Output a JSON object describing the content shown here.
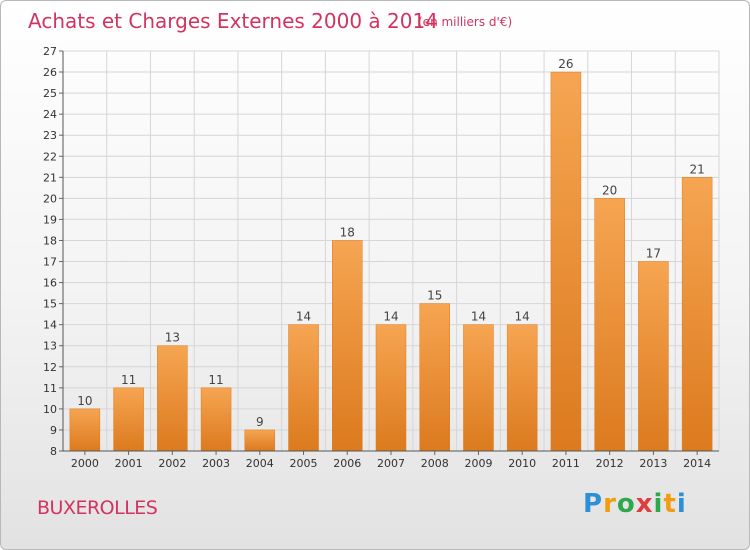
{
  "header": {
    "title": "Achats et Charges Externes 2000 à 2014",
    "unit": "(en milliers d'€)"
  },
  "footer": {
    "place": "BUXEROLLES",
    "logo_letters": [
      "P",
      "r",
      "o",
      "x",
      "i",
      "t",
      "i"
    ]
  },
  "colors": {
    "title": "#d2335f",
    "bar_light": "#f6a552",
    "bar_dark": "#dc7a1e",
    "logo": [
      "#2f8fd6",
      "#f39c12",
      "#2ea84a",
      "#e23b3b",
      "#2ea84a",
      "#f39c12",
      "#2f8fd6"
    ]
  },
  "chart_data": {
    "type": "bar",
    "categories": [
      "2000",
      "2001",
      "2002",
      "2003",
      "2004",
      "2005",
      "2006",
      "2007",
      "2008",
      "2009",
      "2010",
      "2011",
      "2012",
      "2013",
      "2014"
    ],
    "values": [
      10,
      11,
      13,
      11,
      9,
      14,
      18,
      14,
      15,
      14,
      14,
      26,
      20,
      17,
      21
    ],
    "data_labels": [
      "10",
      "11",
      "13",
      "11",
      "9",
      "14",
      "18",
      "14",
      "15",
      "14",
      "14",
      "26",
      "20",
      "17",
      "21"
    ],
    "y_ticks": [
      "8",
      "9",
      "10",
      "11",
      "12",
      "13",
      "14",
      "15",
      "16",
      "17",
      "18",
      "19",
      "20",
      "21",
      "22",
      "23",
      "24",
      "25",
      "26",
      "27"
    ],
    "ylim": [
      8,
      27
    ],
    "grid": true
  }
}
